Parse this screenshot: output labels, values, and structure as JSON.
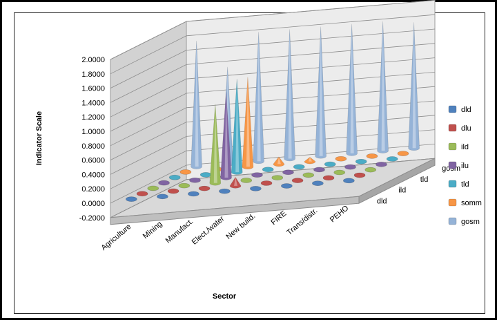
{
  "chart_data": {
    "type": "3d-column",
    "title": "",
    "xlabel": "Sector",
    "ylabel": "Indicator Scale",
    "zlabel": "",
    "ylim": [
      -0.2,
      2.0
    ],
    "y_ticks": [
      "2.0000",
      "1.8000",
      "1.6000",
      "1.4000",
      "1.2000",
      "1.0000",
      "0.8000",
      "0.6000",
      "0.4000",
      "0.2000",
      "0.0000",
      "-0.2000"
    ],
    "categories": [
      "Agriculture",
      "Mining",
      "Manufact.",
      "Elect./water",
      "New build.",
      "FIRE",
      "Trans/distr.",
      "PEHO"
    ],
    "depth_labels": [
      "dld",
      "ild",
      "tld",
      "gosm"
    ],
    "legend_position": "right",
    "series": [
      {
        "name": "dld",
        "color": "#4F81BD",
        "values": [
          0.0,
          0.0,
          0.0,
          0.0,
          0.0,
          0.0,
          0.0,
          0.0
        ]
      },
      {
        "name": "dlu",
        "color": "#C0504D",
        "values": [
          0.0,
          0.0,
          0.0,
          0.12,
          0.0,
          0.0,
          0.0,
          0.0
        ]
      },
      {
        "name": "ild",
        "color": "#9BBB59",
        "values": [
          0.0,
          0.0,
          1.1,
          0.0,
          0.0,
          0.0,
          0.0,
          0.0
        ]
      },
      {
        "name": "ilu",
        "color": "#8064A2",
        "values": [
          0.0,
          0.0,
          1.2,
          0.0,
          0.0,
          0.0,
          0.0,
          0.0
        ]
      },
      {
        "name": "tld",
        "color": "#4BACC6",
        "values": [
          0.0,
          0.0,
          1.3,
          0.0,
          0.0,
          0.0,
          0.0,
          0.0
        ]
      },
      {
        "name": "somm",
        "color": "#F79646",
        "values": [
          0.0,
          0.0,
          1.25,
          0.1,
          0.06,
          0.0,
          0.0,
          0.0
        ]
      },
      {
        "name": "gosm",
        "color": "#95B3D7",
        "values": [
          1.75,
          1.35,
          1.8,
          1.8,
          1.8,
          1.8,
          1.8,
          1.75
        ]
      }
    ]
  }
}
